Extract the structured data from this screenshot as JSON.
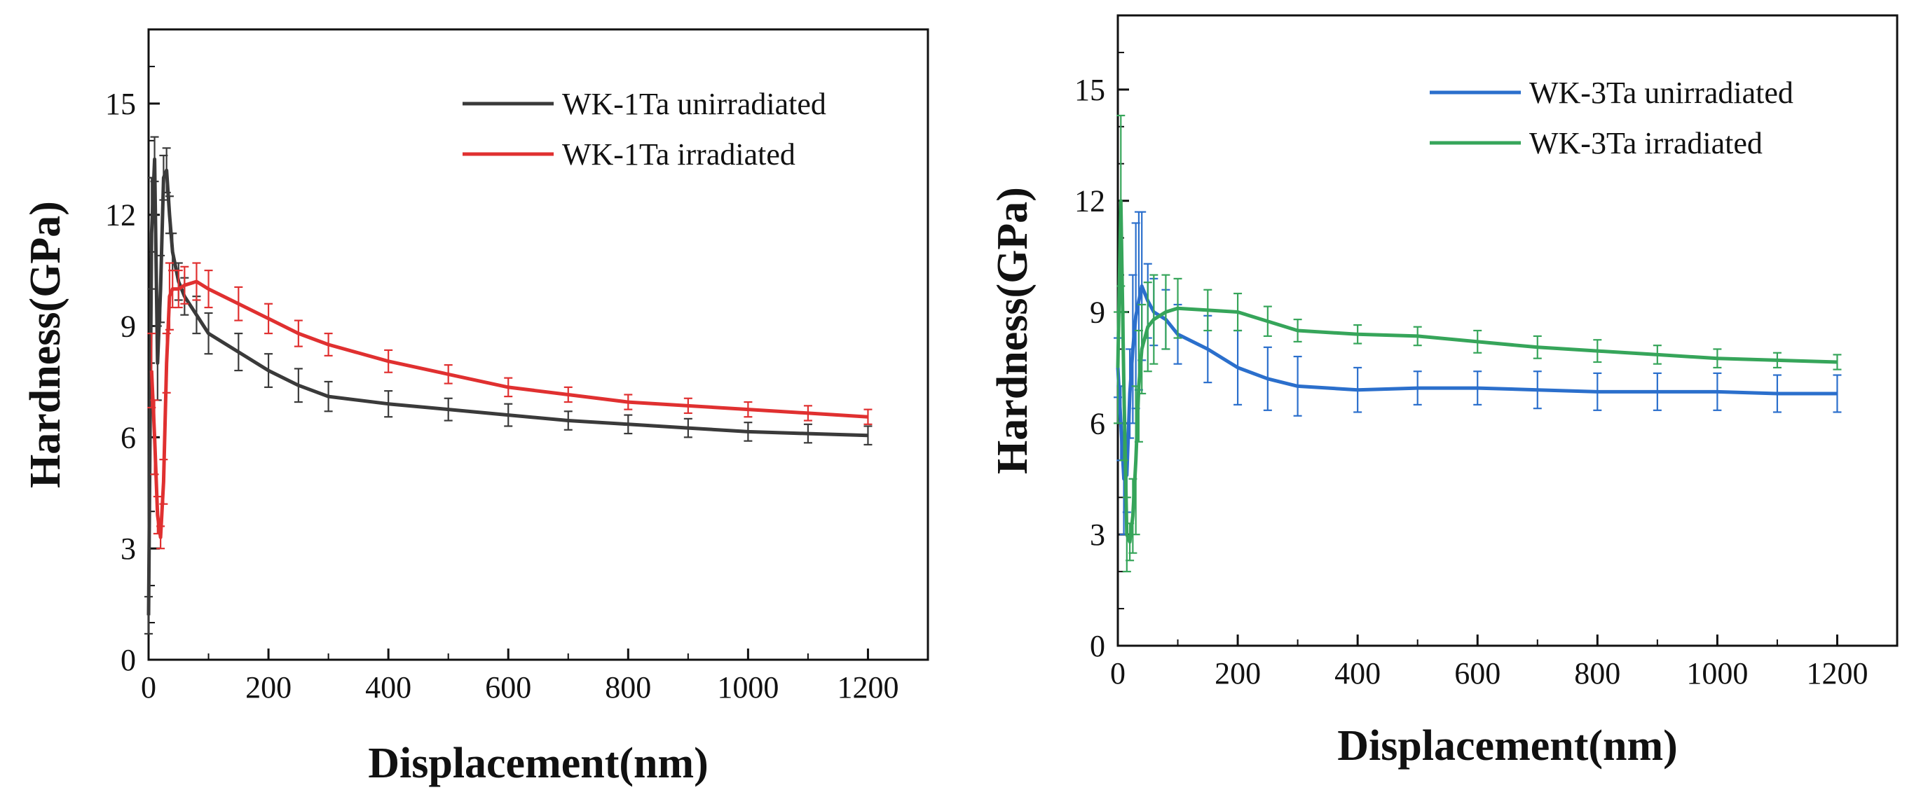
{
  "chart_data": [
    {
      "type": "line",
      "title": "",
      "xlabel": "Displacement(nm)",
      "ylabel": "Hardness(GPa)",
      "xlim": [
        0,
        1300
      ],
      "ylim": [
        0,
        17
      ],
      "xticks": [
        0,
        200,
        400,
        600,
        800,
        1000,
        1200
      ],
      "yticks": [
        0,
        3,
        6,
        9,
        12,
        15
      ],
      "legend_position": "top-right",
      "error_bars": true,
      "series": [
        {
          "name": "WK-1Ta unirradiated",
          "color": "#3a3a3a",
          "x": [
            0,
            5,
            10,
            15,
            20,
            25,
            30,
            35,
            40,
            50,
            60,
            80,
            100,
            150,
            200,
            250,
            300,
            400,
            500,
            600,
            700,
            800,
            900,
            1000,
            1100,
            1200
          ],
          "y": [
            1.2,
            11.5,
            13.5,
            8.0,
            10.0,
            13.0,
            13.2,
            12.0,
            11.0,
            10.2,
            9.8,
            9.3,
            8.8,
            8.3,
            7.8,
            7.4,
            7.1,
            6.9,
            6.75,
            6.6,
            6.45,
            6.35,
            6.25,
            6.15,
            6.1,
            6.05
          ],
          "err": [
            0.5,
            1.5,
            0.6,
            1.0,
            0.9,
            0.6,
            0.6,
            0.5,
            0.5,
            0.5,
            0.5,
            0.5,
            0.55,
            0.5,
            0.45,
            0.45,
            0.4,
            0.35,
            0.3,
            0.3,
            0.25,
            0.25,
            0.25,
            0.25,
            0.25,
            0.25
          ]
        },
        {
          "name": "WK-1Ta irradiated",
          "color": "#e03030",
          "x": [
            5,
            10,
            15,
            20,
            25,
            30,
            35,
            40,
            50,
            60,
            80,
            100,
            150,
            200,
            250,
            300,
            400,
            500,
            600,
            700,
            800,
            900,
            1000,
            1100,
            1200
          ],
          "y": [
            7.8,
            6.0,
            3.9,
            3.3,
            4.8,
            8.0,
            9.8,
            10.0,
            10.0,
            10.1,
            10.2,
            10.0,
            9.6,
            9.2,
            8.8,
            8.5,
            8.05,
            7.7,
            7.35,
            7.15,
            6.95,
            6.85,
            6.75,
            6.65,
            6.55
          ],
          "err": [
            1.0,
            1.0,
            0.5,
            0.3,
            0.6,
            0.8,
            0.9,
            0.5,
            0.5,
            0.5,
            0.5,
            0.5,
            0.45,
            0.4,
            0.35,
            0.3,
            0.3,
            0.25,
            0.25,
            0.2,
            0.2,
            0.2,
            0.2,
            0.2,
            0.2
          ]
        }
      ]
    },
    {
      "type": "line",
      "title": "",
      "xlabel": "Displacement(nm)",
      "ylabel": "Hardness(GPa)",
      "xlim": [
        0,
        1300
      ],
      "ylim": [
        0,
        17
      ],
      "xticks": [
        0,
        200,
        400,
        600,
        800,
        1000,
        1200
      ],
      "yticks": [
        0,
        3,
        6,
        9,
        12,
        15
      ],
      "legend_position": "top-right",
      "error_bars": true,
      "series": [
        {
          "name": "WK-3Ta unirradiated",
          "color": "#2b6fcc",
          "x": [
            0,
            5,
            10,
            15,
            20,
            25,
            30,
            35,
            40,
            50,
            60,
            80,
            100,
            150,
            200,
            250,
            300,
            400,
            500,
            600,
            700,
            800,
            900,
            1000,
            1100,
            1200
          ],
          "y": [
            7.5,
            6.0,
            4.5,
            4.6,
            6.8,
            8.0,
            8.9,
            9.3,
            9.7,
            9.3,
            9.0,
            8.8,
            8.4,
            8.0,
            7.5,
            7.2,
            7.0,
            6.9,
            6.95,
            6.95,
            6.9,
            6.85,
            6.85,
            6.85,
            6.8,
            6.8
          ],
          "err": [
            0.8,
            1.0,
            1.5,
            1.0,
            1.2,
            2.0,
            2.5,
            2.4,
            2.0,
            1.0,
            0.9,
            0.8,
            0.8,
            0.9,
            1.0,
            0.85,
            0.8,
            0.6,
            0.45,
            0.45,
            0.5,
            0.5,
            0.5,
            0.5,
            0.5,
            0.5
          ]
        },
        {
          "name": "WK-3Ta irradiated",
          "color": "#36a55a",
          "x": [
            0,
            5,
            10,
            15,
            20,
            25,
            30,
            35,
            40,
            50,
            60,
            80,
            100,
            150,
            200,
            250,
            300,
            400,
            500,
            600,
            700,
            800,
            900,
            1000,
            1100,
            1200
          ],
          "y": [
            7.5,
            12.0,
            7.0,
            3.0,
            2.8,
            3.5,
            5.0,
            7.0,
            8.0,
            8.6,
            8.8,
            9.0,
            9.1,
            9.05,
            9.0,
            8.75,
            8.5,
            8.4,
            8.35,
            8.2,
            8.05,
            7.95,
            7.85,
            7.75,
            7.7,
            7.65
          ],
          "err": [
            1.5,
            2.3,
            2.0,
            1.0,
            0.5,
            1.0,
            2.0,
            1.5,
            1.2,
            1.2,
            1.2,
            1.0,
            0.8,
            0.55,
            0.5,
            0.4,
            0.3,
            0.25,
            0.25,
            0.3,
            0.3,
            0.3,
            0.25,
            0.25,
            0.2,
            0.2
          ]
        }
      ]
    }
  ]
}
